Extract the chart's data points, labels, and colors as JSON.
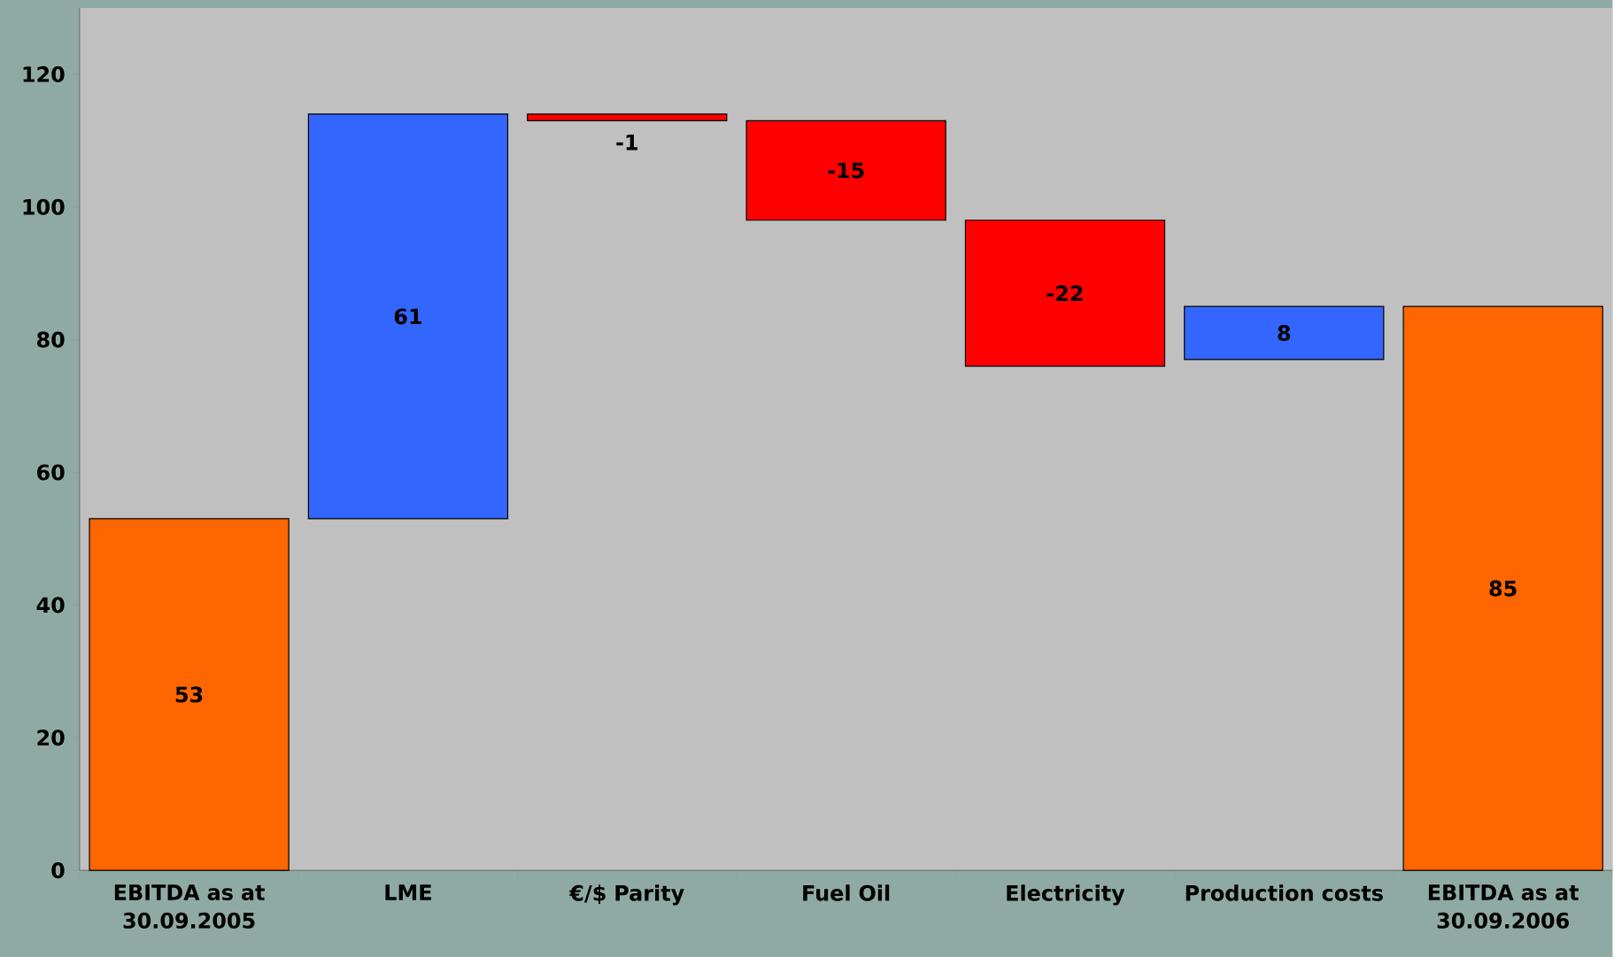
{
  "chart_data": {
    "type": "bar",
    "categories": [
      "EBITDA as at 30.09.2005",
      "LME",
      "€/$ Parity",
      "Fuel Oil",
      "Electricity",
      "Production costs",
      "EBITDA as at 30.09.2006"
    ],
    "values": [
      53,
      61,
      -1,
      -15,
      -22,
      8,
      85
    ],
    "base": [
      0,
      53,
      114,
      113,
      98,
      77,
      0
    ],
    "colors": [
      "#ff6600",
      "#3366ff",
      "#ff0000",
      "#ff0000",
      "#ff0000",
      "#3366ff",
      "#ff6600"
    ],
    "ylim": [
      0,
      130
    ],
    "yticks": [
      0,
      20,
      40,
      60,
      80,
      100,
      120
    ],
    "data_labels": true
  }
}
